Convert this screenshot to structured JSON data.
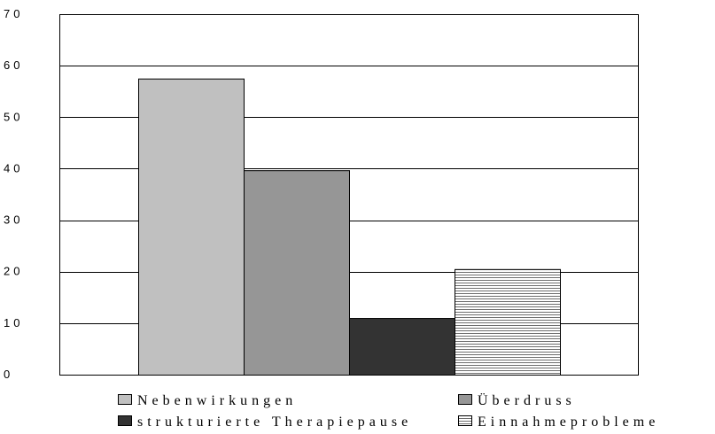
{
  "chart_data": {
    "type": "bar",
    "ylim": [
      0,
      70
    ],
    "yticks": [
      "0",
      "10",
      "20",
      "30",
      "40",
      "50",
      "60",
      "70"
    ],
    "ytick_values": [
      0,
      10,
      20,
      30,
      40,
      50,
      60,
      70
    ],
    "grid": true,
    "legend_position": "bottom",
    "series": [
      {
        "name": "Nebenwirkungen",
        "value": 57.5,
        "color": "#c0c0c0",
        "pattern": "solid"
      },
      {
        "name": "Überdruss",
        "value": 39.7,
        "color": "#969696",
        "pattern": "solid"
      },
      {
        "name": "strukturierte Therapiepause",
        "value": 11,
        "color": "#333333",
        "pattern": "solid"
      },
      {
        "name": "Einnahmeprobleme",
        "value": 20.5,
        "color": "#ffffff",
        "pattern": "horizontal-lines"
      }
    ]
  }
}
